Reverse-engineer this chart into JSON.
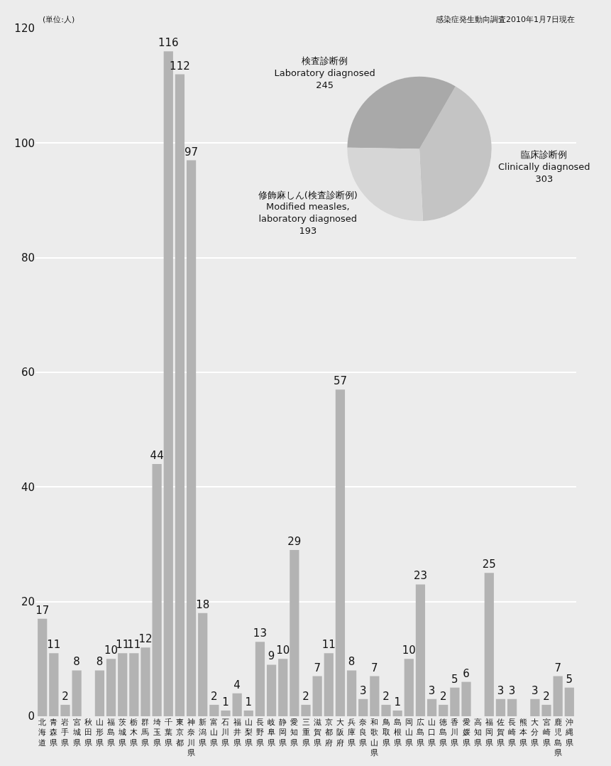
{
  "chart_data": [
    {
      "type": "bar",
      "categories": [
        "北海道",
        "青森県",
        "岩手県",
        "宮城県",
        "秋田県",
        "山形県",
        "福島県",
        "茨城県",
        "栃木県",
        "群馬県",
        "埼玉県",
        "千葉県",
        "東京都",
        "神奈川県",
        "新潟県",
        "富山県",
        "石川県",
        "福井県",
        "山梨県",
        "長野県",
        "岐阜県",
        "静岡県",
        "愛知県",
        "三重県",
        "滋賀県",
        "京都府",
        "大阪府",
        "兵庫県",
        "奈良県",
        "和歌山県",
        "鳥取県",
        "島根県",
        "岡山県",
        "広島県",
        "山口県",
        "徳島県",
        "香川県",
        "愛媛県",
        "高知県",
        "福岡県",
        "佐賀県",
        "長崎県",
        "熊本県",
        "大分県",
        "宮崎県",
        "鹿児島県",
        "沖縄県"
      ],
      "values": [
        17,
        11,
        2,
        8,
        0,
        8,
        10,
        11,
        11,
        12,
        44,
        116,
        112,
        97,
        18,
        2,
        1,
        4,
        1,
        13,
        9,
        10,
        29,
        2,
        7,
        11,
        57,
        8,
        3,
        7,
        2,
        1,
        10,
        23,
        3,
        2,
        5,
        6,
        0,
        25,
        3,
        3,
        0,
        3,
        2,
        7,
        5
      ],
      "value_labels": [
        "17",
        "11",
        "2",
        "8",
        null,
        "8",
        "10",
        "11",
        "11",
        "12",
        "44",
        "116",
        "112",
        "97",
        "18",
        "2",
        "1",
        "4",
        "1",
        "13",
        "9",
        "10",
        "29",
        "2",
        "7",
        "11",
        "57",
        "8",
        "3",
        "7",
        "2",
        "1",
        "10",
        "23",
        "3",
        "2",
        "5",
        "6",
        null,
        "25",
        "3",
        "3",
        null,
        "3",
        "2",
        "7",
        "5"
      ],
      "color": "#b3b3b3",
      "ylim": [
        0,
        120
      ],
      "yticks": [
        0,
        20,
        40,
        60,
        80,
        100,
        120
      ],
      "grid": "y",
      "annotations": [
        "(単位:人)",
        "感染症発生動向調査2010年1月7日現在"
      ]
    },
    {
      "type": "pie",
      "categories": [
        "臨床診断例\nClinically diagnosed",
        "検査診断例\nLaboratory diagnosed",
        "修飾麻しん(検査診断例)\nModified measles,\nlaboratory diagnosed"
      ],
      "values": [
        303,
        245,
        193
      ],
      "data_labels": true,
      "colors": [
        "#c4c4c4",
        "#a9a9a9",
        "#d6d6d6"
      ]
    }
  ]
}
